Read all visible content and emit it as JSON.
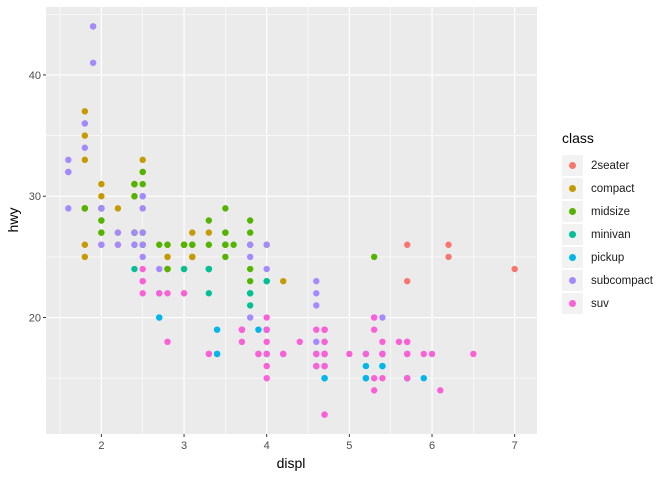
{
  "chart_data": {
    "type": "scatter",
    "title": "",
    "xlabel": "displ",
    "ylabel": "hwy",
    "xlim": [
      1.33,
      7.27
    ],
    "ylim": [
      10.4,
      45.6
    ],
    "x_ticks": [
      2,
      3,
      4,
      5,
      6,
      7
    ],
    "y_ticks": [
      20,
      30,
      40
    ],
    "grid": true,
    "legend": {
      "title": "class",
      "position": "right"
    },
    "series": [
      {
        "name": "2seater",
        "color": "#F8766D",
        "points": [
          [
            5.7,
            26
          ],
          [
            5.7,
            23
          ],
          [
            6.2,
            26
          ],
          [
            6.2,
            25
          ],
          [
            7.0,
            24
          ]
        ]
      },
      {
        "name": "compact",
        "color": "#C49A00",
        "points": [
          [
            1.8,
            29
          ],
          [
            1.8,
            29
          ],
          [
            2.0,
            31
          ],
          [
            2.0,
            30
          ],
          [
            2.8,
            26
          ],
          [
            2.8,
            26
          ],
          [
            3.1,
            27
          ],
          [
            1.8,
            26
          ],
          [
            1.8,
            25
          ],
          [
            2.0,
            28
          ],
          [
            2.0,
            27
          ],
          [
            2.8,
            25
          ],
          [
            2.8,
            25
          ],
          [
            3.1,
            25
          ],
          [
            3.1,
            25
          ],
          [
            2.8,
            24
          ],
          [
            3.1,
            25
          ],
          [
            4.2,
            23
          ],
          [
            2.2,
            26
          ],
          [
            2.2,
            27
          ],
          [
            2.4,
            31
          ],
          [
            2.4,
            31
          ],
          [
            3.0,
            26
          ],
          [
            3.0,
            26
          ],
          [
            3.3,
            27
          ],
          [
            2.4,
            30
          ],
          [
            2.5,
            33
          ],
          [
            2.5,
            32
          ],
          [
            1.8,
            37
          ],
          [
            1.8,
            35
          ],
          [
            1.8,
            33
          ],
          [
            2.0,
            29
          ],
          [
            2.0,
            29
          ],
          [
            2.0,
            29
          ],
          [
            2.0,
            29
          ],
          [
            2.8,
            24
          ],
          [
            2.8,
            24
          ],
          [
            2.0,
            29
          ],
          [
            1.9,
            44
          ],
          [
            2.0,
            29
          ],
          [
            2.0,
            26
          ],
          [
            2.5,
            29
          ],
          [
            2.5,
            26
          ],
          [
            1.8,
            29
          ],
          [
            1.8,
            29
          ],
          [
            2.5,
            27
          ],
          [
            2.4,
            27
          ],
          [
            2.4,
            27
          ],
          [
            3.0,
            26
          ],
          [
            2.2,
            29
          ],
          [
            2.4,
            31
          ]
        ]
      },
      {
        "name": "midsize",
        "color": "#53B400",
        "points": [
          [
            2.4,
            27
          ],
          [
            2.4,
            30
          ],
          [
            3.1,
            26
          ],
          [
            3.5,
            29
          ],
          [
            3.6,
            26
          ],
          [
            2.4,
            27
          ],
          [
            3.0,
            26
          ],
          [
            3.3,
            28
          ],
          [
            3.5,
            26
          ],
          [
            3.5,
            26
          ],
          [
            2.4,
            31
          ],
          [
            2.5,
            32
          ],
          [
            2.5,
            27
          ],
          [
            2.5,
            26
          ],
          [
            3.0,
            26
          ],
          [
            3.5,
            25
          ],
          [
            3.5,
            26
          ],
          [
            3.8,
            28
          ],
          [
            3.8,
            26
          ],
          [
            3.8,
            24
          ],
          [
            5.3,
            25
          ],
          [
            2.0,
            28
          ],
          [
            2.0,
            29
          ],
          [
            2.0,
            27
          ],
          [
            1.8,
            29
          ],
          [
            2.0,
            29
          ],
          [
            2.8,
            26
          ],
          [
            3.3,
            26
          ],
          [
            3.3,
            24
          ],
          [
            3.8,
            27
          ],
          [
            4.0,
            26
          ],
          [
            3.1,
            26
          ],
          [
            3.5,
            27
          ],
          [
            3.0,
            26
          ],
          [
            2.5,
            31
          ],
          [
            3.0,
            24
          ],
          [
            2.8,
            24
          ],
          [
            2.5,
            26
          ],
          [
            2.4,
            26
          ],
          [
            3.5,
            27
          ],
          [
            3.8,
            23
          ],
          [
            2.7,
            26
          ]
        ]
      },
      {
        "name": "minivan",
        "color": "#00C094",
        "points": [
          [
            2.4,
            24
          ],
          [
            3.0,
            24
          ],
          [
            3.3,
            22
          ],
          [
            3.3,
            24
          ],
          [
            3.3,
            24
          ],
          [
            3.3,
            24
          ],
          [
            3.8,
            22
          ],
          [
            3.8,
            22
          ],
          [
            3.8,
            21
          ],
          [
            4.0,
            23
          ],
          [
            4.0,
            23
          ]
        ]
      },
      {
        "name": "pickup",
        "color": "#00B6EB",
        "points": [
          [
            2.7,
            20
          ],
          [
            2.7,
            20
          ],
          [
            3.4,
            17
          ],
          [
            3.4,
            19
          ],
          [
            3.9,
            17
          ],
          [
            4.2,
            17
          ],
          [
            4.7,
            17
          ],
          [
            4.7,
            16
          ],
          [
            4.7,
            15
          ],
          [
            5.2,
            15
          ],
          [
            5.2,
            17
          ],
          [
            5.7,
            17
          ],
          [
            5.9,
            15
          ],
          [
            4.6,
            17
          ],
          [
            5.4,
            16
          ],
          [
            5.4,
            16
          ],
          [
            4.0,
            17
          ],
          [
            4.7,
            19
          ],
          [
            4.7,
            17
          ],
          [
            4.6,
            17
          ],
          [
            4.6,
            16
          ],
          [
            5.4,
            17
          ],
          [
            5.2,
            15
          ],
          [
            4.0,
            19
          ],
          [
            4.0,
            19
          ],
          [
            2.7,
            22
          ],
          [
            3.4,
            17
          ],
          [
            4.0,
            17
          ],
          [
            4.7,
            15
          ],
          [
            5.7,
            15
          ],
          [
            4.7,
            18
          ],
          [
            3.9,
            19
          ],
          [
            5.2,
            16
          ],
          [
            5.4,
            17
          ]
        ]
      },
      {
        "name": "subcompact",
        "color": "#A58AFF",
        "points": [
          [
            1.6,
            33
          ],
          [
            1.6,
            32
          ],
          [
            1.6,
            32
          ],
          [
            1.6,
            29
          ],
          [
            1.6,
            32
          ],
          [
            1.8,
            34
          ],
          [
            1.8,
            36
          ],
          [
            1.8,
            36
          ],
          [
            2.0,
            29
          ],
          [
            2.4,
            26
          ],
          [
            2.4,
            27
          ],
          [
            2.5,
            30
          ],
          [
            2.5,
            30
          ],
          [
            1.9,
            41
          ],
          [
            1.9,
            44
          ],
          [
            2.0,
            26
          ],
          [
            2.0,
            26
          ],
          [
            2.5,
            26
          ],
          [
            2.5,
            29
          ],
          [
            2.2,
            26
          ],
          [
            2.2,
            27
          ],
          [
            2.5,
            25
          ],
          [
            2.5,
            27
          ],
          [
            2.0,
            29
          ],
          [
            2.7,
            24
          ],
          [
            3.8,
            26
          ],
          [
            3.8,
            25
          ],
          [
            4.0,
            26
          ],
          [
            4.0,
            24
          ],
          [
            4.6,
            21
          ],
          [
            4.6,
            22
          ],
          [
            4.6,
            23
          ],
          [
            5.4,
            20
          ],
          [
            5.4,
            17
          ],
          [
            3.8,
            20
          ],
          [
            4.0,
            19
          ],
          [
            4.6,
            17
          ],
          [
            4.6,
            18
          ]
        ]
      },
      {
        "name": "suv",
        "color": "#FB61D7",
        "points": [
          [
            5.3,
            20
          ],
          [
            5.3,
            15
          ],
          [
            5.3,
            20
          ],
          [
            5.7,
            17
          ],
          [
            6.0,
            17
          ],
          [
            5.7,
            17
          ],
          [
            6.5,
            17
          ],
          [
            3.7,
            19
          ],
          [
            3.7,
            18
          ],
          [
            3.9,
            17
          ],
          [
            3.9,
            17
          ],
          [
            4.7,
            18
          ],
          [
            4.7,
            19
          ],
          [
            4.7,
            12
          ],
          [
            5.2,
            17
          ],
          [
            5.7,
            18
          ],
          [
            5.9,
            17
          ],
          [
            4.7,
            19
          ],
          [
            4.7,
            12
          ],
          [
            4.7,
            17
          ],
          [
            4.7,
            16
          ],
          [
            4.7,
            17
          ],
          [
            5.7,
            18
          ],
          [
            6.1,
            14
          ],
          [
            4.0,
            17
          ],
          [
            4.2,
            17
          ],
          [
            4.4,
            18
          ],
          [
            4.6,
            16
          ],
          [
            5.4,
            17
          ],
          [
            5.4,
            15
          ],
          [
            5.4,
            18
          ],
          [
            3.0,
            22
          ],
          [
            3.7,
            19
          ],
          [
            4.0,
            18
          ],
          [
            4.0,
            20
          ],
          [
            4.6,
            17
          ],
          [
            5.0,
            17
          ],
          [
            4.2,
            17
          ],
          [
            4.7,
            19
          ],
          [
            5.3,
            14
          ],
          [
            5.6,
            18
          ],
          [
            2.5,
            22
          ],
          [
            2.5,
            23
          ],
          [
            3.3,
            17
          ],
          [
            3.3,
            17
          ],
          [
            4.0,
            15
          ],
          [
            4.7,
            17
          ],
          [
            5.7,
            15
          ],
          [
            4.0,
            19
          ],
          [
            4.0,
            17
          ],
          [
            2.5,
            24
          ],
          [
            2.7,
            22
          ],
          [
            2.8,
            18
          ],
          [
            2.5,
            23
          ],
          [
            4.6,
            19
          ],
          [
            4.7,
            17
          ],
          [
            3.7,
            19
          ],
          [
            5.3,
            19
          ],
          [
            5.4,
            17
          ],
          [
            3.0,
            22
          ],
          [
            4.0,
            16
          ],
          [
            2.8,
            22
          ]
        ]
      }
    ]
  }
}
